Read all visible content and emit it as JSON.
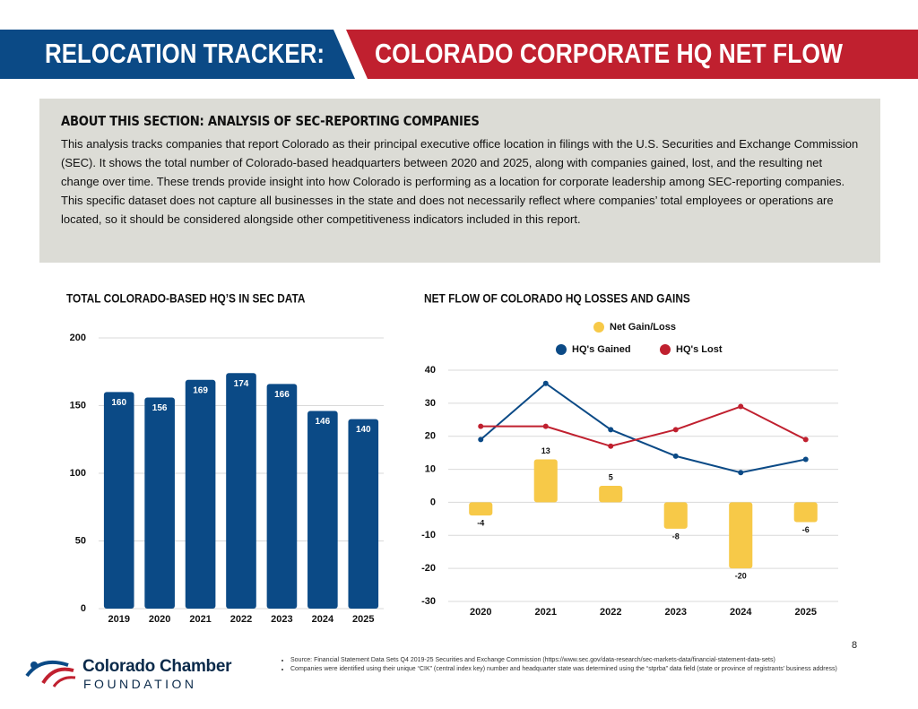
{
  "header": {
    "left": "RELOCATION TRACKER:",
    "right": "COLORADO CORPORATE HQ NET FLOW"
  },
  "about": {
    "title": "ABOUT THIS SECTION: ANALYSIS OF SEC-REPORTING COMPANIES",
    "text": "This analysis tracks companies that report Colorado as their principal executive office location in filings with the U.S. Securities and Exchange Commission (SEC). It shows the total number of Colorado-based headquarters between 2020 and 2025, along with companies gained, lost, and the resulting net change over time. These trends provide insight into how Colorado is performing as a location for corporate leadership among SEC-reporting companies. This specific dataset does not capture all businesses in the state and does not necessarily reflect where companies’ total employees or operations are located, so it should be considered alongside other competitiveness indicators included in this report."
  },
  "chart_data": [
    {
      "type": "bar",
      "title": "TOTAL COLORADO-BASED HQ’S IN SEC DATA",
      "categories": [
        "2019",
        "2020",
        "2021",
        "2022",
        "2023",
        "2024",
        "2025"
      ],
      "values": [
        160,
        156,
        169,
        174,
        166,
        146,
        140
      ],
      "color": "#0b4a86",
      "ylim": [
        0,
        200
      ],
      "yticks": [
        0,
        50,
        100,
        150,
        200
      ],
      "grid": true
    },
    {
      "type": "combo",
      "title": "NET FLOW OF COLORADO HQ LOSSES AND GAINS",
      "categories": [
        "2020",
        "2021",
        "2022",
        "2023",
        "2024",
        "2025"
      ],
      "series": [
        {
          "name": "Net Gain/Loss",
          "type": "bar",
          "color": "#f7c948",
          "values": [
            -4,
            13,
            5,
            -8,
            -20,
            -6
          ]
        },
        {
          "name": "HQ's Gained",
          "type": "line",
          "color": "#0b4a86",
          "values": [
            19,
            36,
            22,
            14,
            9,
            13
          ]
        },
        {
          "name": "HQ's Lost",
          "type": "line",
          "color": "#c0202f",
          "values": [
            23,
            23,
            17,
            22,
            29,
            19
          ]
        }
      ],
      "ylim": [
        -30,
        40
      ],
      "yticks": [
        -30,
        -20,
        -10,
        0,
        10,
        20,
        30,
        40
      ],
      "grid": true
    }
  ],
  "page_number": "8",
  "logo": {
    "name": "Colorado Chamber",
    "sub": "FOUNDATION"
  },
  "footnotes": [
    "Source: Financial Statement Data Sets Q4 2019-25 Securities and Exchange Commission (https://www.sec.gov/data-research/sec-markets-data/financial-statement-data-sets)",
    "Companies were identified using their unique “CIK” (central index key) number and headquarter state was determined using the “stprba” data field (state or province of registrants’ business address)"
  ]
}
